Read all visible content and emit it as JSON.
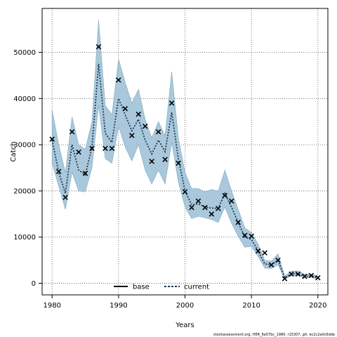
{
  "chart_data": {
    "type": "line",
    "title": "",
    "xlabel": "Years",
    "ylabel": "Catch",
    "xlim": [
      1978.5,
      2021.5
    ],
    "ylim": [
      -2500,
      59500
    ],
    "x_ticks": [
      1980,
      1990,
      2000,
      2010,
      2020
    ],
    "y_ticks": [
      0,
      10000,
      20000,
      30000,
      40000,
      50000
    ],
    "x_tick_labels": [
      "1980",
      "1990",
      "2000",
      "2010",
      "2020"
    ],
    "y_tick_labels": [
      "0",
      "10000",
      "20000",
      "30000",
      "40000",
      "50000"
    ],
    "grid": true,
    "legend": {
      "placement": "bottom-center",
      "entries": [
        "base",
        "current"
      ]
    },
    "footer": "stockassessment.org, HER_6a57bc_1980, r15307, git: ec2c2a0c6dde",
    "colors": {
      "band": "#a5c5d9",
      "band_edge": "#7ea9c2",
      "current": "#1f3a5a",
      "base": "#000000",
      "grid": "#555555"
    },
    "x": [
      1980,
      1981,
      1982,
      1983,
      1984,
      1985,
      1986,
      1987,
      1988,
      1989,
      1990,
      1991,
      1992,
      1993,
      1994,
      1995,
      1996,
      1997,
      1998,
      1999,
      2000,
      2001,
      2002,
      2003,
      2004,
      2005,
      2006,
      2007,
      2008,
      2009,
      2010,
      2011,
      2012,
      2013,
      2014,
      2015,
      2016,
      2017,
      2018,
      2019,
      2020
    ],
    "series": [
      {
        "name": "current",
        "values": [
          31000,
          24000,
          19500,
          30000,
          24500,
          23500,
          29500,
          47500,
          32500,
          30500,
          40000,
          36500,
          33000,
          35500,
          31000,
          28000,
          31000,
          28500,
          37000,
          27000,
          20000,
          17000,
          17200,
          16500,
          16300,
          16200,
          19500,
          16500,
          13200,
          10000,
          9500,
          7000,
          4200,
          4000,
          5000,
          1200,
          2000,
          2100,
          1500,
          1600,
          1200
        ],
        "lower": [
          26000,
          21000,
          16000,
          24000,
          20000,
          19800,
          25000,
          38500,
          27000,
          26000,
          34000,
          29500,
          26500,
          30000,
          24500,
          21500,
          24500,
          21500,
          30500,
          22000,
          16500,
          14000,
          14500,
          14200,
          13800,
          13200,
          16500,
          13000,
          10200,
          7800,
          8000,
          5800,
          3300,
          3200,
          4000,
          900,
          1600,
          1700,
          1200,
          1300,
          900
        ],
        "upper": [
          37500,
          30000,
          24000,
          36000,
          30000,
          29000,
          35000,
          57000,
          38500,
          36500,
          48500,
          43500,
          39000,
          42000,
          35500,
          31500,
          35000,
          32000,
          45800,
          31500,
          24000,
          20500,
          20500,
          19800,
          20300,
          20000,
          24500,
          20000,
          16000,
          12000,
          11000,
          8500,
          5000,
          4800,
          6400,
          1600,
          2600,
          2700,
          2000,
          2000,
          1600
        ]
      },
      {
        "name": "base",
        "values": [
          31200,
          24200,
          18600,
          32800,
          28400,
          23800,
          29200,
          51200,
          29200,
          29200,
          44000,
          37800,
          32000,
          36600,
          34000,
          26400,
          32800,
          26800,
          39000,
          26000,
          19800,
          16400,
          17800,
          16400,
          15000,
          16200,
          19000,
          17800,
          13200,
          10400,
          10200,
          7000,
          6600,
          4000,
          5000,
          1000,
          2000,
          2000,
          1500,
          1700,
          1200
        ]
      }
    ]
  }
}
